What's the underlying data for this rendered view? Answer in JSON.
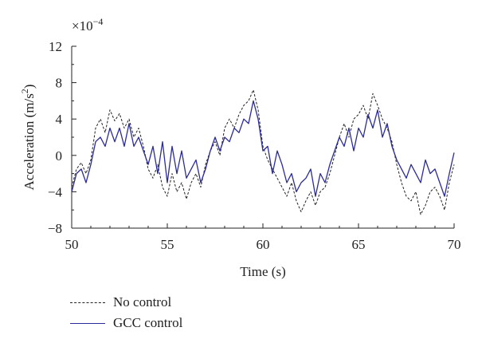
{
  "chart_data": {
    "type": "line",
    "xlabel": "Time (s)",
    "ylabel_prefix": "Acceleration (m/s",
    "ylabel_sup": "2",
    "ylabel_suffix": ")",
    "scale_base": "×10",
    "scale_exp": "−4",
    "xlim": [
      50,
      70
    ],
    "ylim": [
      -8,
      12
    ],
    "xticks": [
      50,
      55,
      60,
      65,
      70
    ],
    "yticks": [
      12,
      8,
      4,
      0,
      -4,
      -8
    ],
    "ytick_labels": [
      "12",
      "8",
      "4",
      "0",
      "−4",
      "−8"
    ],
    "grid": false,
    "legend_position": "bottom-left",
    "series": [
      {
        "name": "No control",
        "color": "#222222",
        "style": "dashed",
        "x": [
          50.0,
          50.25,
          50.5,
          50.75,
          51.0,
          51.25,
          51.5,
          51.75,
          52.0,
          52.25,
          52.5,
          52.75,
          53.0,
          53.25,
          53.5,
          53.75,
          54.0,
          54.25,
          54.5,
          54.75,
          55.0,
          55.25,
          55.5,
          55.75,
          56.0,
          56.25,
          56.5,
          56.75,
          57.0,
          57.25,
          57.5,
          57.75,
          58.0,
          58.25,
          58.5,
          58.75,
          59.0,
          59.25,
          59.5,
          59.75,
          60.0,
          60.25,
          60.5,
          60.75,
          61.0,
          61.25,
          61.5,
          61.75,
          62.0,
          62.25,
          62.5,
          62.75,
          63.0,
          63.25,
          63.5,
          63.75,
          64.0,
          64.25,
          64.5,
          64.75,
          65.0,
          65.25,
          65.5,
          65.75,
          66.0,
          66.25,
          66.5,
          66.75,
          67.0,
          67.25,
          67.5,
          67.75,
          68.0,
          68.25,
          68.5,
          68.75,
          69.0,
          69.25,
          69.5,
          69.75,
          70.0
        ],
        "y": [
          -3.5,
          -1.5,
          -0.8,
          -2.0,
          -0.5,
          3.0,
          4.0,
          2.5,
          5.0,
          3.8,
          4.6,
          3.0,
          4.0,
          2.0,
          3.0,
          1.0,
          -1.5,
          -2.5,
          -1.0,
          -3.5,
          -4.5,
          -2.0,
          -4.0,
          -3.0,
          -4.8,
          -3.0,
          -2.0,
          -3.5,
          -1.0,
          0.5,
          1.5,
          0.0,
          3.0,
          4.0,
          3.0,
          4.5,
          5.5,
          6.0,
          7.2,
          5.0,
          1.0,
          -0.5,
          -1.5,
          -2.5,
          -3.5,
          -4.5,
          -3.0,
          -5.0,
          -6.2,
          -5.0,
          -4.0,
          -5.5,
          -4.0,
          -3.5,
          -2.0,
          0.0,
          2.0,
          3.5,
          2.0,
          4.0,
          4.5,
          5.5,
          4.0,
          6.8,
          5.5,
          4.0,
          3.0,
          1.5,
          -1.0,
          -3.0,
          -4.5,
          -5.0,
          -4.0,
          -6.5,
          -5.5,
          -4.0,
          -3.5,
          -4.5,
          -6.0,
          -3.0,
          -1.0
        ]
      },
      {
        "name": "GCC control",
        "color": "#2b2b9a",
        "style": "solid",
        "x": [
          50.0,
          50.25,
          50.5,
          50.75,
          51.0,
          51.25,
          51.5,
          51.75,
          52.0,
          52.25,
          52.5,
          52.75,
          53.0,
          53.25,
          53.5,
          53.75,
          54.0,
          54.25,
          54.5,
          54.75,
          55.0,
          55.25,
          55.5,
          55.75,
          56.0,
          56.25,
          56.5,
          56.75,
          57.0,
          57.25,
          57.5,
          57.75,
          58.0,
          58.25,
          58.5,
          58.75,
          59.0,
          59.25,
          59.5,
          59.75,
          60.0,
          60.25,
          60.5,
          60.75,
          61.0,
          61.25,
          61.5,
          61.75,
          62.0,
          62.25,
          62.5,
          62.75,
          63.0,
          63.25,
          63.5,
          63.75,
          64.0,
          64.25,
          64.5,
          64.75,
          65.0,
          65.25,
          65.5,
          65.75,
          66.0,
          66.25,
          66.5,
          66.75,
          67.0,
          67.25,
          67.5,
          67.75,
          68.0,
          68.25,
          68.5,
          68.75,
          69.0,
          69.25,
          69.5,
          69.75,
          70.0
        ],
        "y": [
          -4.0,
          -2.0,
          -1.5,
          -3.0,
          -1.0,
          1.5,
          2.0,
          1.0,
          3.0,
          1.5,
          3.0,
          1.0,
          3.5,
          1.0,
          2.0,
          0.5,
          -1.0,
          1.0,
          -2.0,
          1.5,
          -3.0,
          1.0,
          -2.0,
          0.5,
          -2.5,
          -1.5,
          -0.5,
          -3.0,
          -1.5,
          0.5,
          2.0,
          0.5,
          2.0,
          1.5,
          3.0,
          2.5,
          4.0,
          3.5,
          6.0,
          4.0,
          0.5,
          1.0,
          -2.0,
          0.5,
          -1.0,
          -3.0,
          -2.0,
          -4.0,
          -3.0,
          -2.5,
          -1.5,
          -4.5,
          -2.0,
          -3.0,
          -1.0,
          0.5,
          2.0,
          1.0,
          3.0,
          0.5,
          3.0,
          2.0,
          4.5,
          3.0,
          5.0,
          2.0,
          3.5,
          1.0,
          -0.5,
          -1.5,
          -2.5,
          -1.0,
          -2.0,
          -3.0,
          -0.5,
          -2.0,
          -1.5,
          -3.0,
          -4.5,
          -2.0,
          0.3
        ]
      }
    ]
  }
}
